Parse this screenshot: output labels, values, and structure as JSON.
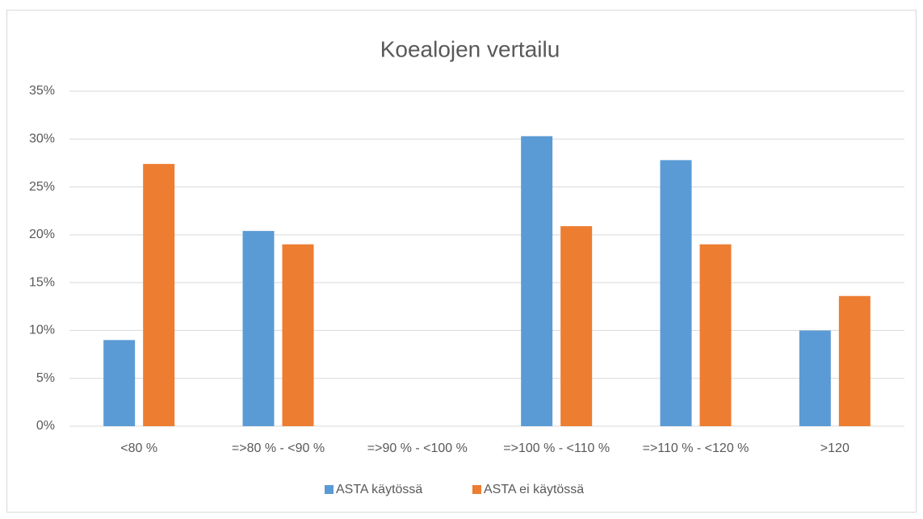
{
  "chart_data": {
    "type": "bar",
    "title": "Koealojen vertailu",
    "categories": [
      "<80 %",
      "=>80 % - <90 %",
      "=>90 % - <100 %",
      "=>100 % - <110 %",
      "=>110 % - <120 %",
      ">120"
    ],
    "series": [
      {
        "name": "ASTA käytössä",
        "color": "#5b9bd5",
        "values": [
          9.0,
          20.4,
          0,
          30.3,
          27.8,
          10.0
        ]
      },
      {
        "name": "ASTA ei käytössä",
        "color": "#ed7d31",
        "values": [
          27.4,
          19.0,
          0,
          20.9,
          19.0,
          13.6
        ]
      }
    ],
    "ylim": [
      0,
      35
    ],
    "yticks": [
      {
        "value": 0,
        "label": "0%"
      },
      {
        "value": 5,
        "label": "5%"
      },
      {
        "value": 10,
        "label": "10%"
      },
      {
        "value": 15,
        "label": "15%"
      },
      {
        "value": 20,
        "label": "20%"
      },
      {
        "value": 25,
        "label": "25%"
      },
      {
        "value": 30,
        "label": "30%"
      },
      {
        "value": 35,
        "label": "35%"
      }
    ],
    "grid": true,
    "legend": "bottom"
  }
}
